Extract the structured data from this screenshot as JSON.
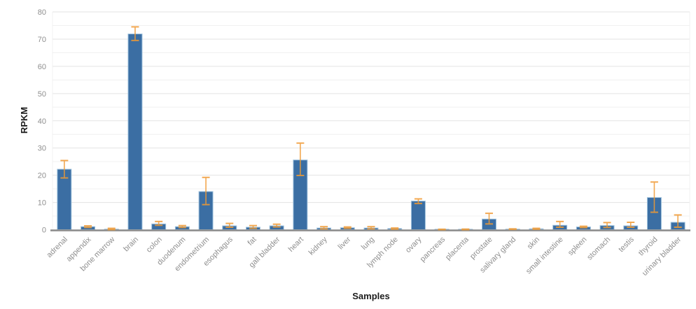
{
  "chart_data": {
    "type": "bar",
    "title": "",
    "xlabel": "Samples",
    "ylabel": "RPKM",
    "ylim": [
      0,
      80
    ],
    "yticks": [
      0,
      10,
      20,
      30,
      40,
      50,
      60,
      70,
      80
    ],
    "minor_grid_step": 5,
    "grid": true,
    "legend_position": "none",
    "categories": [
      "adrenal",
      "appendix",
      "bone marrow",
      "brain",
      "colon",
      "duodenum",
      "endometrium",
      "esophagus",
      "fat",
      "gall bladder",
      "heart",
      "kidney",
      "liver",
      "lung",
      "lymph node",
      "ovary",
      "pancreas",
      "placenta",
      "prostate",
      "salivary gland",
      "skin",
      "small intestine",
      "spleen",
      "stomach",
      "testis",
      "thyroid",
      "urinary bladder"
    ],
    "series": [
      {
        "name": "RPKM",
        "values": [
          22.2,
          1.1,
          0.2,
          71.9,
          2.1,
          1.1,
          14.0,
          1.4,
          0.9,
          1.4,
          25.6,
          0.6,
          0.7,
          0.6,
          0.4,
          10.5,
          0.1,
          0.1,
          3.9,
          0.2,
          0.3,
          1.6,
          1.0,
          1.5,
          1.4,
          11.8,
          2.7
        ],
        "error_low": [
          19.0,
          0.8,
          0.0,
          69.5,
          1.6,
          0.8,
          9.2,
          0.9,
          0.5,
          1.0,
          19.9,
          0.3,
          0.5,
          0.3,
          0.2,
          9.6,
          0.0,
          0.0,
          2.1,
          0.1,
          0.15,
          0.9,
          0.75,
          0.8,
          0.9,
          6.4,
          0.9
        ],
        "error_high": [
          25.4,
          1.4,
          0.5,
          74.5,
          3.0,
          1.5,
          19.2,
          2.3,
          1.5,
          2.0,
          31.8,
          1.1,
          1.0,
          1.1,
          0.6,
          11.3,
          0.15,
          0.2,
          6.0,
          0.3,
          0.5,
          3.0,
          1.25,
          2.6,
          2.7,
          17.5,
          5.4
        ]
      }
    ],
    "colors": {
      "bar_fill": "#3b6ea3",
      "bar_edge": "#9fc2dd",
      "error_bar": "#f09a33",
      "axis_line": "#8e8e8e",
      "tick_label": "#8f8f8f",
      "gridline_major": "#e3e3e3",
      "gridline_minor": "#f0f0f0",
      "axis_title": "#1d1d1d",
      "background": "#ffffff"
    }
  }
}
